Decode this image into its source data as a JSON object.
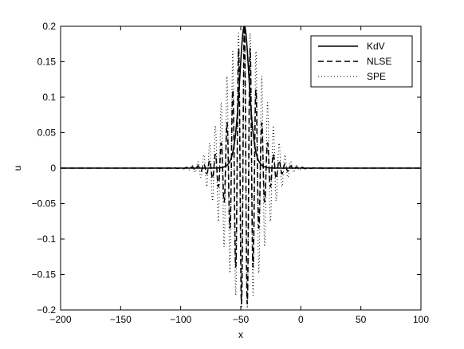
{
  "chart_data": {
    "type": "line",
    "xlabel": "x",
    "ylabel": "u",
    "xlim": [
      -200,
      100
    ],
    "ylim": [
      -0.2,
      0.2
    ],
    "x_ticks": [
      -200,
      -150,
      -100,
      -50,
      0,
      50,
      100
    ],
    "y_ticks": [
      -0.2,
      -0.15,
      -0.1,
      -0.05,
      0,
      0.05,
      0.1,
      0.15,
      0.2
    ],
    "x_tick_labels": [
      "−200",
      "−150",
      "−100",
      "−50",
      "0",
      "50",
      "100"
    ],
    "y_tick_labels": [
      "−0.2",
      "−0.15",
      "−0.1",
      "−0.05",
      "0",
      "0.05",
      "0.1",
      "0.15",
      "0.2"
    ],
    "legend_position": "top-right",
    "series": [
      {
        "name": "KdV",
        "line_style": "solid",
        "color": "#000000",
        "form": "sech-squared",
        "amplitude": 0.2,
        "center": -47,
        "half_width": 5.5
      },
      {
        "name": "NLSE",
        "line_style": "dashed",
        "color": "#000000",
        "form": "modulated sech pulse",
        "amplitude": 0.2,
        "center": -47,
        "envelope_width": 8,
        "carrier_wavenumber": 1.3
      },
      {
        "name": "SPE",
        "line_style": "dotted",
        "color": "#000000",
        "form": "modulated pulse",
        "amplitude": 0.2,
        "center": -47,
        "envelope_width": 22,
        "carrier_wavenumber": 1.3
      }
    ]
  }
}
